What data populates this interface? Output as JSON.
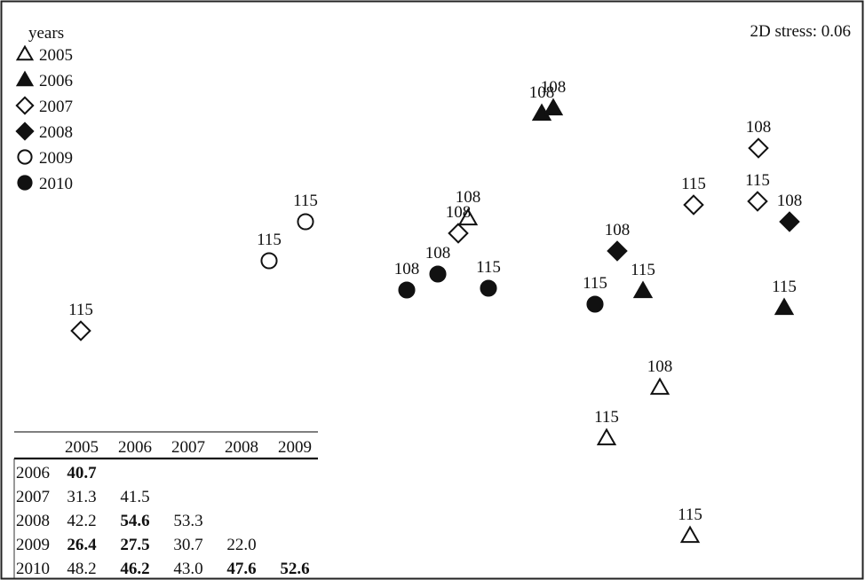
{
  "chart_data": {
    "type": "scatter",
    "title": "",
    "annotation": "2D stress: 0.06",
    "legend": {
      "title": "years",
      "placement": "top-left",
      "entries": [
        {
          "year": "2005",
          "marker": "triangle",
          "filled": false
        },
        {
          "year": "2006",
          "marker": "triangle",
          "filled": true
        },
        {
          "year": "2007",
          "marker": "diamond",
          "filled": false
        },
        {
          "year": "2008",
          "marker": "diamond",
          "filled": true
        },
        {
          "year": "2009",
          "marker": "circle",
          "filled": false
        },
        {
          "year": "2010",
          "marker": "circle",
          "filled": true
        }
      ]
    },
    "axes": {
      "x_range": [
        0,
        974
      ],
      "y_range": [
        0,
        654
      ],
      "y_direction": "down",
      "ticks": false,
      "grid": false
    },
    "points": [
      {
        "year": "2005",
        "site": "108",
        "x": 743,
        "y": 437
      },
      {
        "year": "2005",
        "site": "115",
        "x": 683,
        "y": 494
      },
      {
        "year": "2005",
        "site": "115",
        "x": 777,
        "y": 604
      },
      {
        "year": "2005",
        "site": "108",
        "x": 527,
        "y": 246
      },
      {
        "year": "2006",
        "site": "108",
        "x": 610,
        "y": 128
      },
      {
        "year": "2006",
        "site": "108",
        "x": 623,
        "y": 122
      },
      {
        "year": "2006",
        "site": "115",
        "x": 724,
        "y": 328
      },
      {
        "year": "2006",
        "site": "115",
        "x": 883,
        "y": 347
      },
      {
        "year": "2007",
        "site": "115",
        "x": 91,
        "y": 373
      },
      {
        "year": "2007",
        "site": "108",
        "x": 516,
        "y": 263
      },
      {
        "year": "2007",
        "site": "115",
        "x": 781,
        "y": 231
      },
      {
        "year": "2007",
        "site": "108",
        "x": 854,
        "y": 167
      },
      {
        "year": "2007",
        "site": "115",
        "x": 853,
        "y": 227
      },
      {
        "year": "2008",
        "site": "108",
        "x": 695,
        "y": 283
      },
      {
        "year": "2008",
        "site": "108",
        "x": 889,
        "y": 250
      },
      {
        "year": "2009",
        "site": "115",
        "x": 303,
        "y": 294
      },
      {
        "year": "2009",
        "site": "115",
        "x": 344,
        "y": 250
      },
      {
        "year": "2010",
        "site": "108",
        "x": 458,
        "y": 327
      },
      {
        "year": "2010",
        "site": "108",
        "x": 493,
        "y": 309
      },
      {
        "year": "2010",
        "site": "115",
        "x": 550,
        "y": 325
      },
      {
        "year": "2010",
        "site": "115",
        "x": 670,
        "y": 343
      }
    ],
    "table": {
      "columns": [
        "2005",
        "2006",
        "2007",
        "2008",
        "2009"
      ],
      "rows": [
        {
          "year": "2006",
          "cells": [
            {
              "v": "40.7",
              "bold": true
            }
          ]
        },
        {
          "year": "2007",
          "cells": [
            {
              "v": "31.3",
              "bold": false
            },
            {
              "v": "41.5",
              "bold": false
            }
          ]
        },
        {
          "year": "2008",
          "cells": [
            {
              "v": "42.2",
              "bold": false
            },
            {
              "v": "54.6",
              "bold": true
            },
            {
              "v": "53.3",
              "bold": false
            }
          ]
        },
        {
          "year": "2009",
          "cells": [
            {
              "v": "26.4",
              "bold": true
            },
            {
              "v": "27.5",
              "bold": true
            },
            {
              "v": "30.7",
              "bold": false
            },
            {
              "v": "22.0",
              "bold": false
            }
          ]
        },
        {
          "year": "2010",
          "cells": [
            {
              "v": "48.2",
              "bold": false
            },
            {
              "v": "46.2",
              "bold": true
            },
            {
              "v": "43.0",
              "bold": false
            },
            {
              "v": "47.6",
              "bold": true
            },
            {
              "v": "52.6",
              "bold": true
            }
          ]
        }
      ]
    }
  }
}
